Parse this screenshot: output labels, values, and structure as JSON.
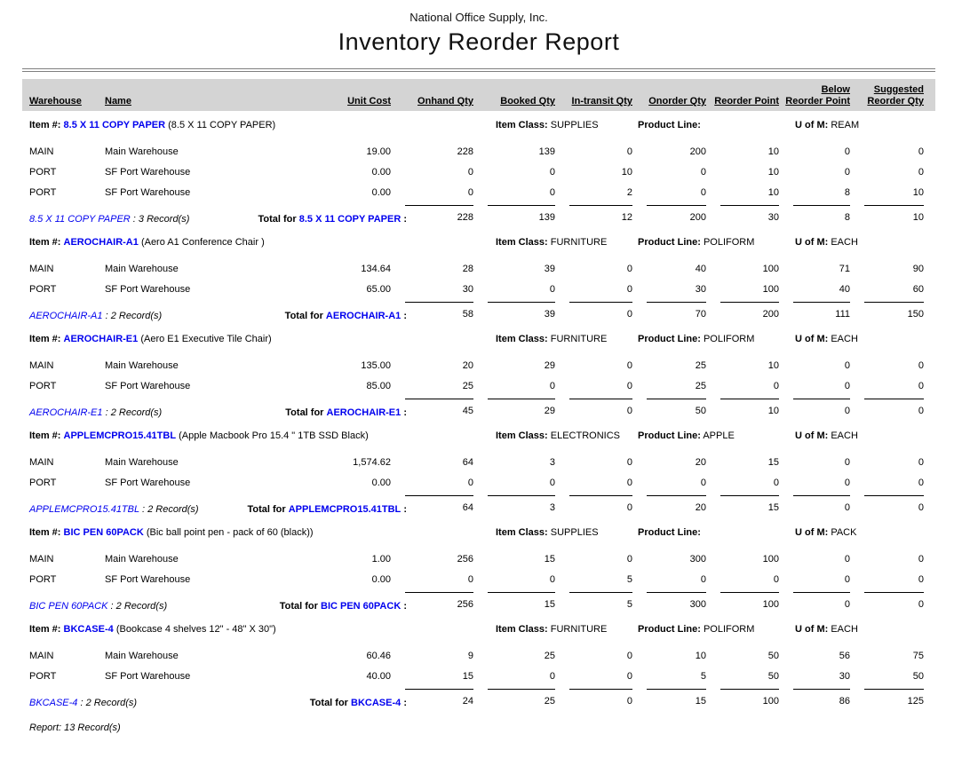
{
  "report": {
    "company": "National Office Supply, Inc.",
    "title": "Inventory Reorder Report",
    "footer": "Report: 13 Record(s)"
  },
  "labels": {
    "item_prefix": "Item #:",
    "item_class": "Item Class:",
    "product_line": "Product Line:",
    "uom": "U of M:",
    "total_for": "Total for",
    "total_colon": ":",
    "record_sep": ":"
  },
  "columns": [
    {
      "label": "Warehouse"
    },
    {
      "label": "Name"
    },
    {
      "label": "Unit Cost"
    },
    {
      "label": "Onhand Qty"
    },
    {
      "label": "Booked Qty"
    },
    {
      "label": "In-transit Qty"
    },
    {
      "label": "Onorder Qty"
    },
    {
      "label": "Reorder Point"
    },
    {
      "label": "Below",
      "label2": "Reorder Point"
    },
    {
      "label": "Suggested",
      "label2": "Reorder Qty"
    }
  ],
  "items": [
    {
      "code": "8.5 X 11 COPY PAPER",
      "description": "(8.5 X 11 COPY PAPER)",
      "item_class": "SUPPLIES",
      "product_line": "",
      "uom": "REAM",
      "records": "3 Record(s)",
      "rows": [
        {
          "warehouse": "MAIN",
          "name": "Main Warehouse",
          "unit_cost": "19.00",
          "onhand": "228",
          "booked": "139",
          "intransit": "0",
          "onorder": "200",
          "reorder_point": "10",
          "below_reorder": "0",
          "suggested": "0"
        },
        {
          "warehouse": "PORT",
          "name": "SF Port Warehouse",
          "unit_cost": "0.00",
          "onhand": "0",
          "booked": "0",
          "intransit": "10",
          "onorder": "0",
          "reorder_point": "10",
          "below_reorder": "0",
          "suggested": "0"
        },
        {
          "warehouse": "PORT",
          "name": "SF Port Warehouse",
          "unit_cost": "0.00",
          "onhand": "0",
          "booked": "0",
          "intransit": "2",
          "onorder": "0",
          "reorder_point": "10",
          "below_reorder": "8",
          "suggested": "10"
        }
      ],
      "totals": {
        "onhand": "228",
        "booked": "139",
        "intransit": "12",
        "onorder": "200",
        "reorder_point": "30",
        "below_reorder": "8",
        "suggested": "10"
      }
    },
    {
      "code": "AEROCHAIR-A1",
      "description": "(Aero A1 Conference Chair )",
      "item_class": "FURNITURE",
      "product_line": "POLIFORM",
      "uom": "EACH",
      "records": "2 Record(s)",
      "rows": [
        {
          "warehouse": "MAIN",
          "name": "Main Warehouse",
          "unit_cost": "134.64",
          "onhand": "28",
          "booked": "39",
          "intransit": "0",
          "onorder": "40",
          "reorder_point": "100",
          "below_reorder": "71",
          "suggested": "90"
        },
        {
          "warehouse": "PORT",
          "name": "SF Port Warehouse",
          "unit_cost": "65.00",
          "onhand": "30",
          "booked": "0",
          "intransit": "0",
          "onorder": "30",
          "reorder_point": "100",
          "below_reorder": "40",
          "suggested": "60"
        }
      ],
      "totals": {
        "onhand": "58",
        "booked": "39",
        "intransit": "0",
        "onorder": "70",
        "reorder_point": "200",
        "below_reorder": "111",
        "suggested": "150"
      }
    },
    {
      "code": "AEROCHAIR-E1",
      "description": "(Aero E1 Executive Tile Chair)",
      "item_class": "FURNITURE",
      "product_line": "POLIFORM",
      "uom": "EACH",
      "records": "2 Record(s)",
      "rows": [
        {
          "warehouse": "MAIN",
          "name": "Main Warehouse",
          "unit_cost": "135.00",
          "onhand": "20",
          "booked": "29",
          "intransit": "0",
          "onorder": "25",
          "reorder_point": "10",
          "below_reorder": "0",
          "suggested": "0"
        },
        {
          "warehouse": "PORT",
          "name": "SF Port Warehouse",
          "unit_cost": "85.00",
          "onhand": "25",
          "booked": "0",
          "intransit": "0",
          "onorder": "25",
          "reorder_point": "0",
          "below_reorder": "0",
          "suggested": "0"
        }
      ],
      "totals": {
        "onhand": "45",
        "booked": "29",
        "intransit": "0",
        "onorder": "50",
        "reorder_point": "10",
        "below_reorder": "0",
        "suggested": "0"
      }
    },
    {
      "code": "APPLEMCPRO15.41TBL",
      "description": "(Apple Macbook Pro 15.4 \" 1TB SSD Black)",
      "item_class": "ELECTRONICS",
      "product_line": "APPLE",
      "uom": "EACH",
      "records": "2 Record(s)",
      "rows": [
        {
          "warehouse": "MAIN",
          "name": "Main Warehouse",
          "unit_cost": "1,574.62",
          "onhand": "64",
          "booked": "3",
          "intransit": "0",
          "onorder": "20",
          "reorder_point": "15",
          "below_reorder": "0",
          "suggested": "0"
        },
        {
          "warehouse": "PORT",
          "name": "SF Port Warehouse",
          "unit_cost": "0.00",
          "onhand": "0",
          "booked": "0",
          "intransit": "0",
          "onorder": "0",
          "reorder_point": "0",
          "below_reorder": "0",
          "suggested": "0"
        }
      ],
      "totals": {
        "onhand": "64",
        "booked": "3",
        "intransit": "0",
        "onorder": "20",
        "reorder_point": "15",
        "below_reorder": "0",
        "suggested": "0"
      }
    },
    {
      "code": "BIC PEN 60PACK",
      "description": "(Bic ball point pen - pack of 60 (black))",
      "item_class": "SUPPLIES",
      "product_line": "",
      "uom": "PACK",
      "records": "2 Record(s)",
      "rows": [
        {
          "warehouse": "MAIN",
          "name": "Main Warehouse",
          "unit_cost": "1.00",
          "onhand": "256",
          "booked": "15",
          "intransit": "0",
          "onorder": "300",
          "reorder_point": "100",
          "below_reorder": "0",
          "suggested": "0"
        },
        {
          "warehouse": "PORT",
          "name": "SF Port Warehouse",
          "unit_cost": "0.00",
          "onhand": "0",
          "booked": "0",
          "intransit": "5",
          "onorder": "0",
          "reorder_point": "0",
          "below_reorder": "0",
          "suggested": "0"
        }
      ],
      "totals": {
        "onhand": "256",
        "booked": "15",
        "intransit": "5",
        "onorder": "300",
        "reorder_point": "100",
        "below_reorder": "0",
        "suggested": "0"
      }
    },
    {
      "code": "BKCASE-4",
      "description": "(Bookcase 4 shelves 12\" - 48\" X 30\")",
      "item_class": "FURNITURE",
      "product_line": "POLIFORM",
      "uom": "EACH",
      "records": "2 Record(s)",
      "rows": [
        {
          "warehouse": "MAIN",
          "name": "Main Warehouse",
          "unit_cost": "60.46",
          "onhand": "9",
          "booked": "25",
          "intransit": "0",
          "onorder": "10",
          "reorder_point": "50",
          "below_reorder": "56",
          "suggested": "75"
        },
        {
          "warehouse": "PORT",
          "name": "SF Port Warehouse",
          "unit_cost": "40.00",
          "onhand": "15",
          "booked": "0",
          "intransit": "0",
          "onorder": "5",
          "reorder_point": "50",
          "below_reorder": "30",
          "suggested": "50"
        }
      ],
      "totals": {
        "onhand": "24",
        "booked": "25",
        "intransit": "0",
        "onorder": "15",
        "reorder_point": "100",
        "below_reorder": "86",
        "suggested": "125"
      }
    }
  ]
}
